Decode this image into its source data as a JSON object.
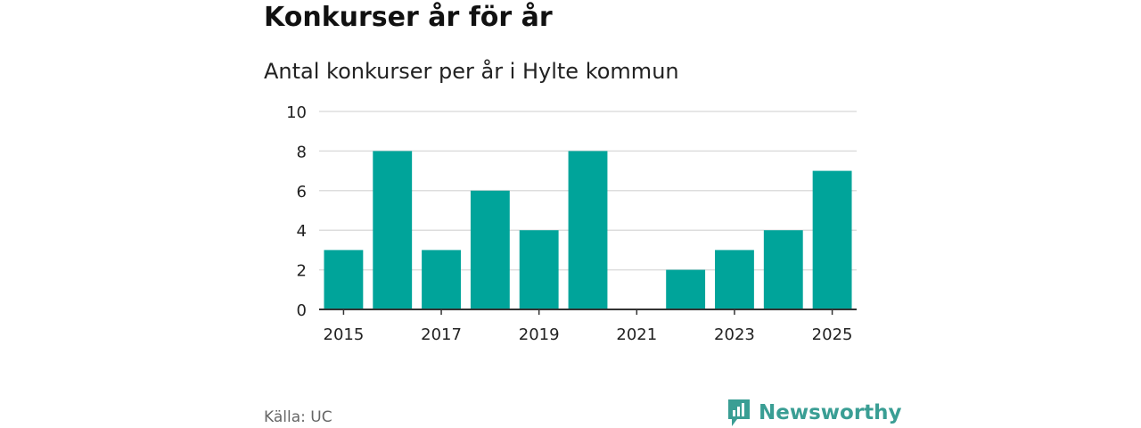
{
  "header": {
    "title": "Konkurser år för år",
    "subtitle": "Antal konkurser per år i Hylte kommun"
  },
  "footer": {
    "source": "Källa: UC",
    "brand": "Newsworthy",
    "brand_icon": "bar-chart-logo-icon"
  },
  "colors": {
    "bar": "#00a49a",
    "grid": "#dddddd",
    "axis": "#333333",
    "brand": "#3a9e94"
  },
  "chart_data": {
    "type": "bar",
    "title": "Antal konkurser per år i Hylte kommun",
    "categories": [
      "2015",
      "2016",
      "2017",
      "2018",
      "2019",
      "2020",
      "2021",
      "2022",
      "2023",
      "2024",
      "2025"
    ],
    "values": [
      3,
      8,
      3,
      6,
      4,
      8,
      0,
      2,
      3,
      4,
      7
    ],
    "x_tick_labels": [
      "2015",
      "2017",
      "2019",
      "2021",
      "2023",
      "2025"
    ],
    "y_ticks": [
      0,
      2,
      4,
      6,
      8,
      10
    ],
    "ylim": [
      0,
      10
    ],
    "xlabel": "",
    "ylabel": "",
    "grid": true,
    "legend": "none"
  }
}
